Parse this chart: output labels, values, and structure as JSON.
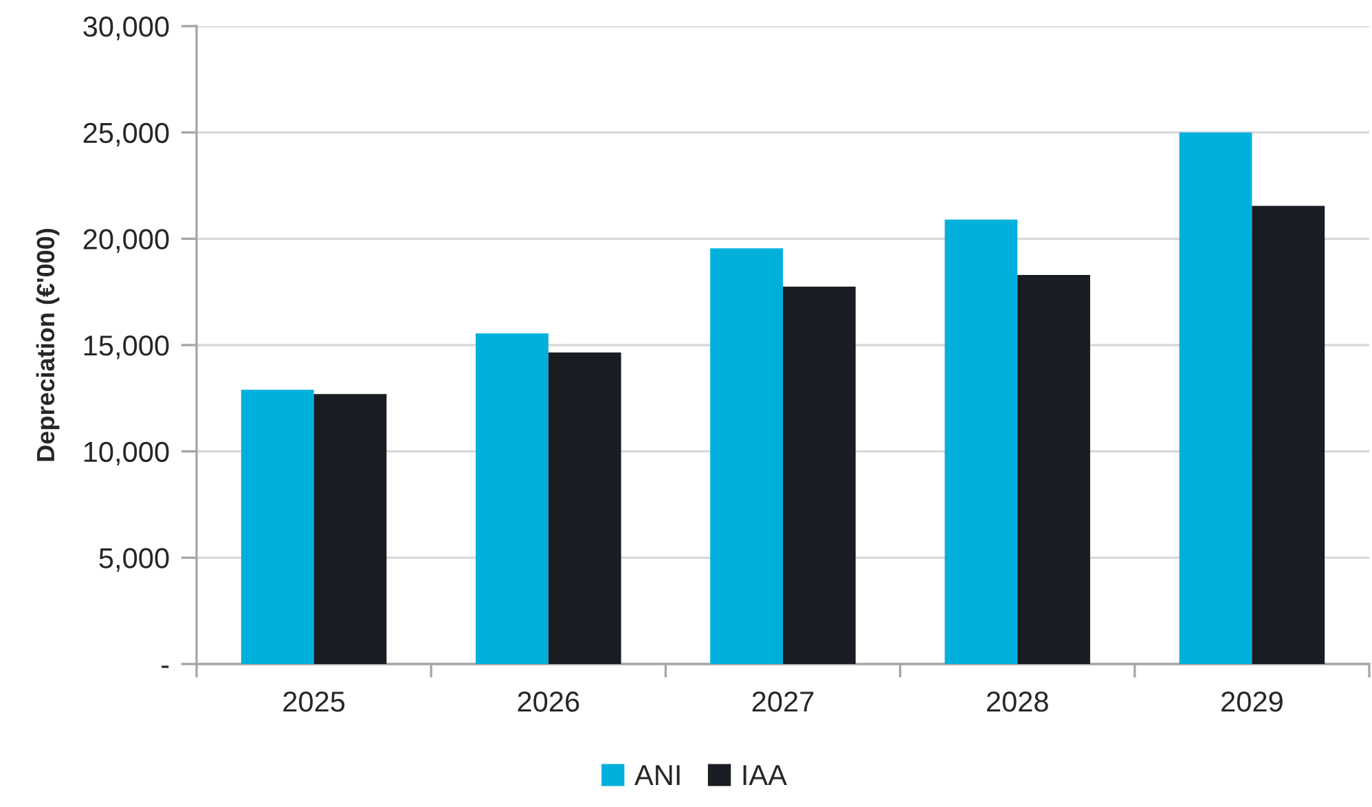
{
  "chart_data": {
    "type": "bar",
    "ylabel": "Depreciation (€'000)",
    "categories": [
      "2025",
      "2026",
      "2027",
      "2028",
      "2029"
    ],
    "series": [
      {
        "name": "ANI",
        "color": "#00b0dc",
        "values": [
          12900,
          15550,
          19550,
          20900,
          25000
        ]
      },
      {
        "name": "IAA",
        "color": "#191c23",
        "values": [
          12700,
          14650,
          17750,
          18300,
          21550
        ]
      }
    ],
    "ylim": [
      0,
      30000
    ],
    "yticks": [
      {
        "value": 0,
        "label": "-"
      },
      {
        "value": 5000,
        "label": "5,000"
      },
      {
        "value": 10000,
        "label": "10,000"
      },
      {
        "value": 15000,
        "label": "15,000"
      },
      {
        "value": 20000,
        "label": "20,000"
      },
      {
        "value": 25000,
        "label": "25,000"
      },
      {
        "value": 30000,
        "label": "30,000"
      }
    ],
    "grid": "y",
    "legend": "bottom"
  }
}
